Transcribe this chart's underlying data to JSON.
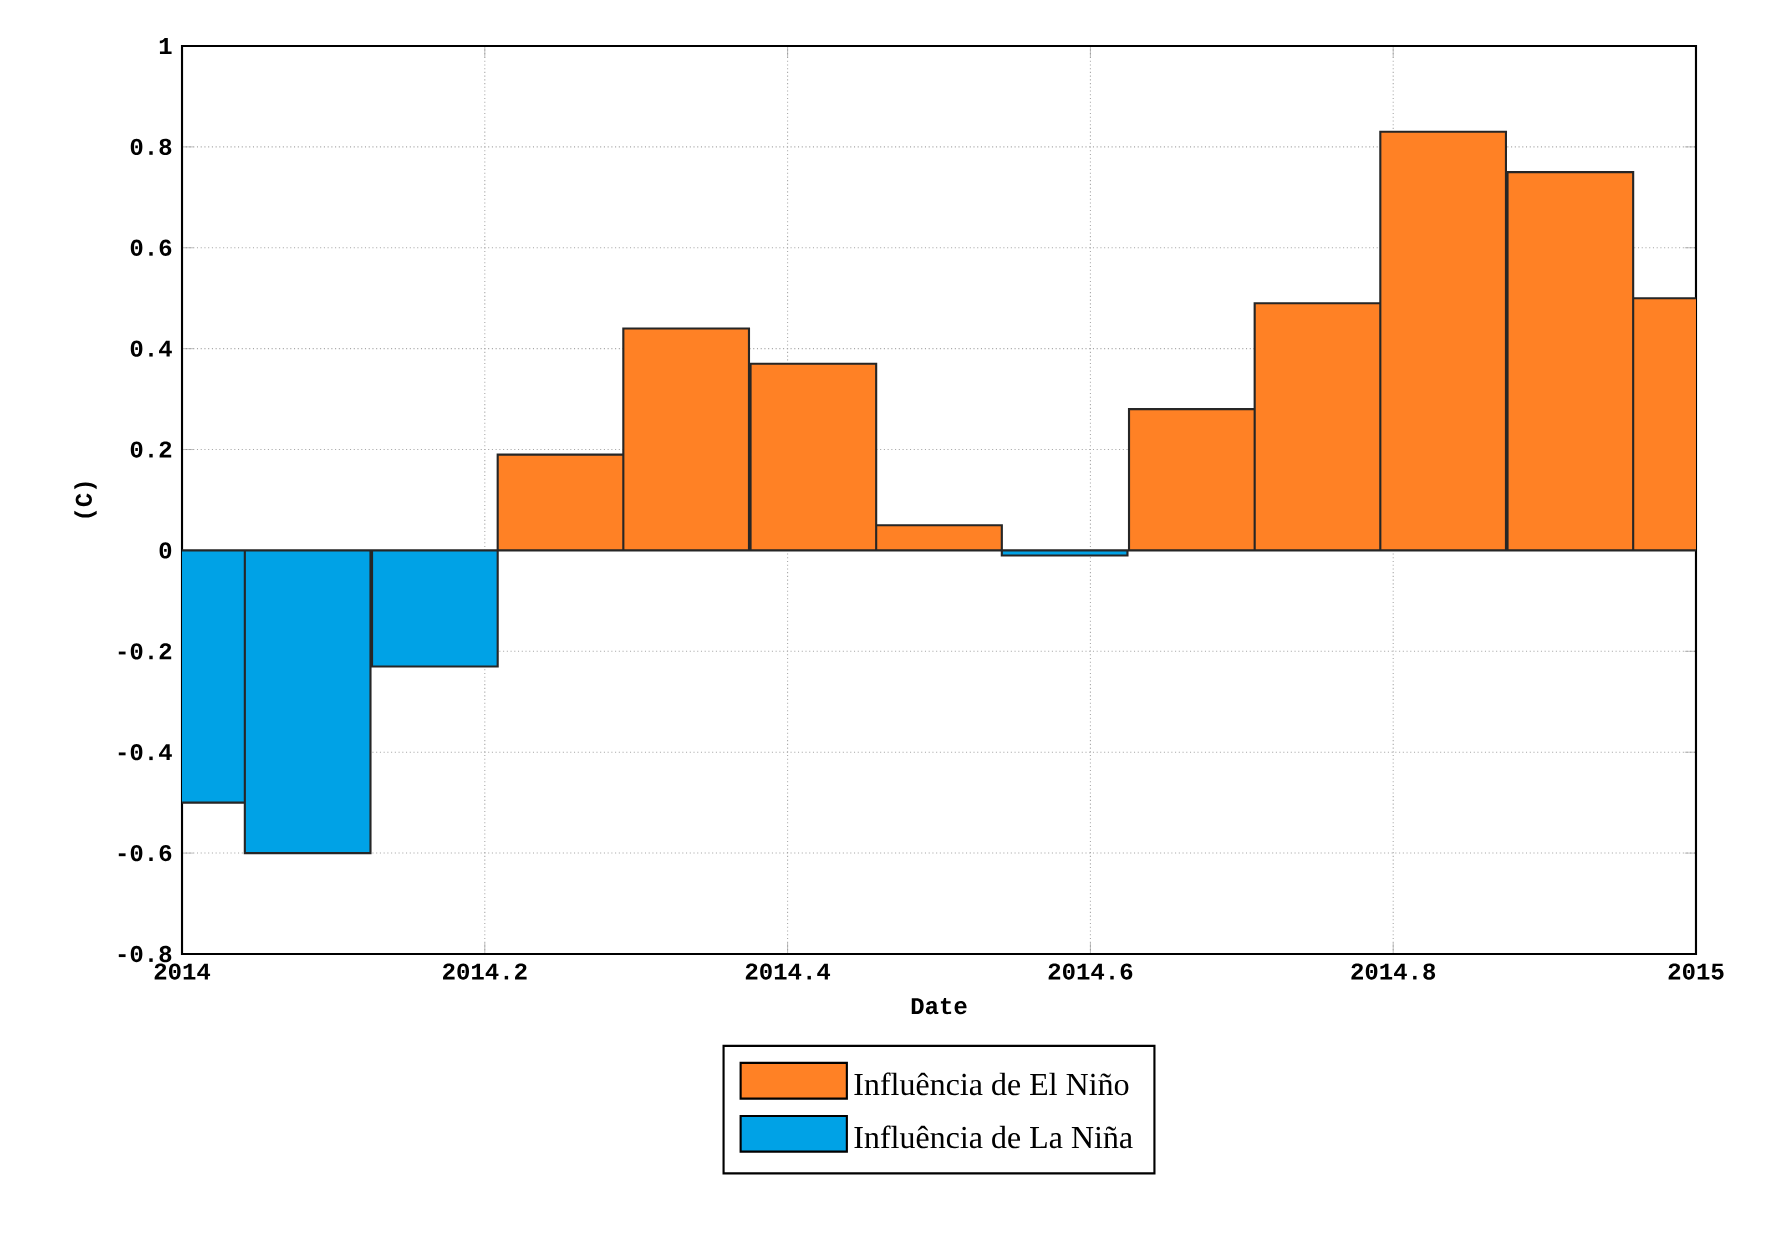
{
  "chart_data": {
    "type": "bar",
    "xlabel": "Date",
    "ylabel": "(C)",
    "x": [
      2014,
      2014.083,
      2014.167,
      2014.25,
      2014.333,
      2014.417,
      2014.5,
      2014.583,
      2014.667,
      2014.75,
      2014.833,
      2014.917,
      2015
    ],
    "series": [
      {
        "name": "Influência de El Niño",
        "color": "#ff8125",
        "values": [
          null,
          null,
          null,
          0.19,
          0.44,
          0.37,
          0.05,
          null,
          0.28,
          0.49,
          0.83,
          0.75,
          0.5
        ]
      },
      {
        "name": "Influência de La Niña",
        "color": "#00a2e6",
        "values": [
          -0.5,
          -0.6,
          -0.23,
          null,
          null,
          null,
          null,
          -0.01,
          null,
          null,
          null,
          null,
          null
        ]
      }
    ],
    "xlim": [
      2014,
      2015
    ],
    "xticks": [
      2014,
      2014.2,
      2014.4,
      2014.6,
      2014.8,
      2015
    ],
    "ylim": [
      -0.8,
      1
    ],
    "yticks": [
      -0.8,
      -0.6,
      -0.4,
      -0.2,
      0,
      0.2,
      0.4,
      0.6,
      0.8,
      1
    ],
    "grid": true,
    "legend": "bottom"
  }
}
